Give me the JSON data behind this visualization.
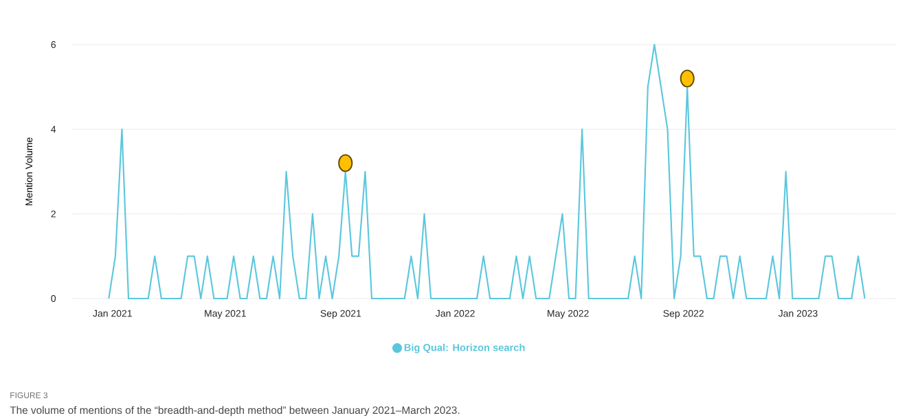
{
  "chart_data": {
    "type": "line",
    "ylabel": "Mention Volume",
    "x": [
      "2020-12-28",
      "2021-01-04",
      "2021-01-11",
      "2021-01-18",
      "2021-01-25",
      "2021-02-01",
      "2021-02-08",
      "2021-02-15",
      "2021-02-22",
      "2021-03-01",
      "2021-03-08",
      "2021-03-15",
      "2021-03-22",
      "2021-03-29",
      "2021-04-05",
      "2021-04-12",
      "2021-04-19",
      "2021-04-26",
      "2021-05-03",
      "2021-05-10",
      "2021-05-17",
      "2021-05-24",
      "2021-05-31",
      "2021-06-07",
      "2021-06-14",
      "2021-06-21",
      "2021-06-28",
      "2021-07-05",
      "2021-07-12",
      "2021-07-19",
      "2021-07-26",
      "2021-08-02",
      "2021-08-09",
      "2021-08-16",
      "2021-08-23",
      "2021-08-30",
      "2021-09-06",
      "2021-09-13",
      "2021-09-20",
      "2021-09-27",
      "2021-10-04",
      "2021-10-11",
      "2021-10-18",
      "2021-10-25",
      "2021-11-01",
      "2021-11-08",
      "2021-11-15",
      "2021-11-22",
      "2021-11-29",
      "2021-12-06",
      "2021-12-13",
      "2021-12-20",
      "2021-12-27",
      "2022-01-03",
      "2022-01-10",
      "2022-01-17",
      "2022-01-24",
      "2022-01-31",
      "2022-02-07",
      "2022-02-14",
      "2022-02-21",
      "2022-02-28",
      "2022-03-07",
      "2022-03-14",
      "2022-03-21",
      "2022-03-28",
      "2022-04-04",
      "2022-04-11",
      "2022-04-18",
      "2022-04-25",
      "2022-05-02",
      "2022-05-09",
      "2022-05-16",
      "2022-05-23",
      "2022-05-30",
      "2022-06-06",
      "2022-06-13",
      "2022-06-20",
      "2022-06-27",
      "2022-07-04",
      "2022-07-11",
      "2022-07-18",
      "2022-07-25",
      "2022-08-01",
      "2022-08-08",
      "2022-08-15",
      "2022-08-22",
      "2022-08-29",
      "2022-09-05",
      "2022-09-12",
      "2022-09-19",
      "2022-09-26",
      "2022-10-03",
      "2022-10-10",
      "2022-10-17",
      "2022-10-24",
      "2022-10-31",
      "2022-11-07",
      "2022-11-14",
      "2022-11-21",
      "2022-11-28",
      "2022-12-05",
      "2022-12-12",
      "2022-12-19",
      "2022-12-26",
      "2023-01-02",
      "2023-01-09",
      "2023-01-16",
      "2023-01-23",
      "2023-01-30",
      "2023-02-06",
      "2023-02-13",
      "2023-02-20",
      "2023-02-27",
      "2023-03-06",
      "2023-03-13"
    ],
    "series": [
      {
        "name": "Big Qual: Horizon search",
        "color": "#5bc7dd",
        "values": [
          0,
          1,
          4,
          0,
          0,
          0,
          0,
          1,
          0,
          0,
          0,
          0,
          1,
          1,
          0,
          1,
          0,
          0,
          0,
          1,
          0,
          0,
          1,
          0,
          0,
          1,
          0,
          3,
          1,
          0,
          0,
          2,
          0,
          1,
          0,
          1,
          3,
          1,
          1,
          3,
          0,
          0,
          0,
          0,
          0,
          0,
          1,
          0,
          2,
          0,
          0,
          0,
          0,
          0,
          0,
          0,
          0,
          1,
          0,
          0,
          0,
          0,
          1,
          0,
          1,
          0,
          0,
          0,
          1,
          2,
          0,
          0,
          4,
          0,
          0,
          0,
          0,
          0,
          0,
          0,
          1,
          0,
          5,
          6,
          5,
          4,
          0,
          1,
          5,
          1,
          1,
          0,
          0,
          1,
          1,
          0,
          1,
          0,
          0,
          0,
          0,
          1,
          0,
          3,
          0,
          0,
          0,
          0,
          0,
          1,
          1,
          0,
          0,
          0,
          1,
          0
        ]
      },
      {
        "type": "scatter",
        "marker": "circle",
        "color": "#ffc000",
        "x": [
          "2021-09-06",
          "2022-09-05"
        ],
        "values": [
          3.2,
          5.2
        ]
      }
    ],
    "xlim": [
      "2020-11-19",
      "2023-04-16"
    ],
    "xticks": [
      {
        "value": "2021-01-01",
        "label": "Jan 2021"
      },
      {
        "value": "2021-05-01",
        "label": "May 2021"
      },
      {
        "value": "2021-09-01",
        "label": "Sep 2021"
      },
      {
        "value": "2022-01-01",
        "label": "Jan 2022"
      },
      {
        "value": "2022-05-01",
        "label": "May 2022"
      },
      {
        "value": "2022-09-01",
        "label": "Sep 2022"
      },
      {
        "value": "2023-01-01",
        "label": "Jan 2023"
      }
    ],
    "ylim": [
      0,
      6
    ],
    "yticks": [
      0,
      2,
      4,
      6
    ],
    "grid": "y",
    "legend": "bottom",
    "annotations": [
      "FIGURE 3",
      "The volume of mentions of the “breadth-and-depth method” between January 2021–March 2023."
    ]
  }
}
